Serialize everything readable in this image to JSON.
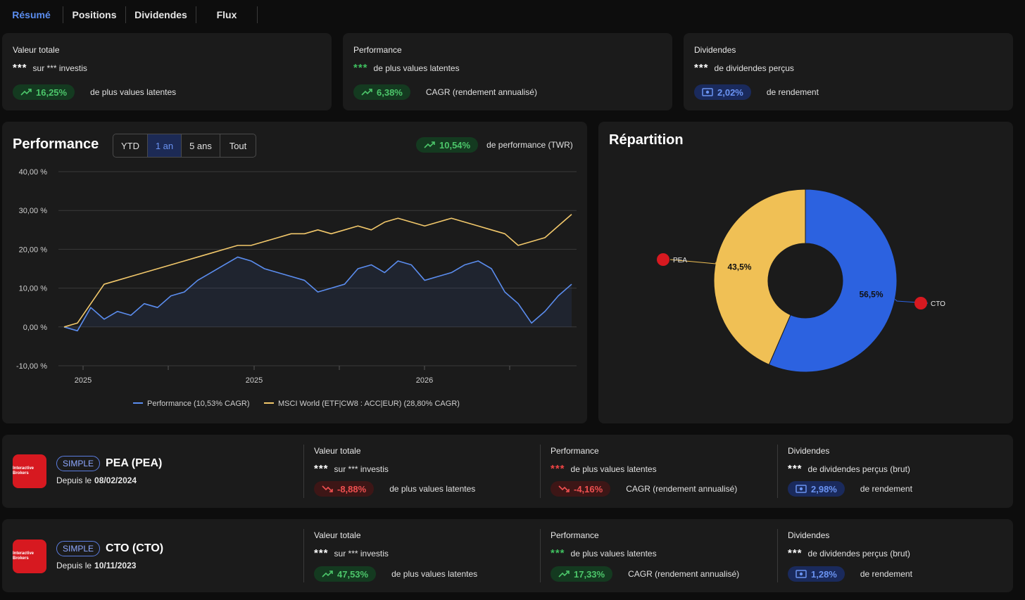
{
  "tabs": [
    "Résumé",
    "Positions",
    "Dividendes",
    "Flux"
  ],
  "summary": {
    "value": {
      "title": "Valeur totale",
      "stars": "***",
      "sub": "sur *** investis",
      "pill": "16,25%",
      "pill_text": "de plus values latentes"
    },
    "perf": {
      "title": "Performance",
      "stars": "***",
      "sub": "de plus values latentes",
      "pill": "6,38%",
      "pill_text": "CAGR (rendement annualisé)"
    },
    "div": {
      "title": "Dividendes",
      "stars": "***",
      "sub": "de dividendes perçus",
      "pill": "2,02%",
      "pill_text": "de rendement"
    }
  },
  "perf_panel": {
    "title": "Performance",
    "ranges": [
      "YTD",
      "1 an",
      "5 ans",
      "Tout"
    ],
    "active_range": "1 an",
    "twr_value": "10,54%",
    "twr_label": "de performance (TWR)"
  },
  "chart_data": {
    "type": "line",
    "ylim": [
      -10,
      40
    ],
    "yticks": [
      "40,00 %",
      "30,00 %",
      "20,00 %",
      "10,00 %",
      "0,00 %",
      "-10,00 %"
    ],
    "xticks": [
      "2025",
      "2025",
      "2026"
    ],
    "series": [
      {
        "name": "Performance (10,53% CAGR)",
        "color": "#5b8def",
        "values": [
          0,
          -1,
          5,
          2,
          4,
          3,
          6,
          5,
          8,
          9,
          12,
          14,
          16,
          18,
          17,
          15,
          14,
          13,
          12,
          9,
          10,
          11,
          15,
          16,
          14,
          17,
          16,
          12,
          13,
          14,
          16,
          17,
          15,
          9,
          6,
          1,
          4,
          8,
          11
        ]
      },
      {
        "name": "MSCI World (ETF|CW8 : ACC|EUR) (28,80% CAGR)",
        "color": "#f2c86b",
        "values": [
          0,
          1,
          6,
          11,
          12,
          13,
          14,
          15,
          16,
          17,
          18,
          19,
          20,
          21,
          21,
          22,
          23,
          24,
          24,
          25,
          24,
          25,
          26,
          25,
          27,
          28,
          27,
          26,
          27,
          28,
          27,
          26,
          25,
          24,
          21,
          22,
          23,
          26,
          29
        ]
      }
    ],
    "legend_position": "bottom"
  },
  "repartition": {
    "title": "Répartition",
    "chart_data": {
      "type": "pie",
      "labels": [
        "CTO",
        "PEA"
      ],
      "values": [
        56.5,
        43.5
      ],
      "value_labels": [
        "56,5%",
        "43,5%"
      ],
      "colors": [
        "#2c62e0",
        "#f0c055"
      ]
    }
  },
  "accounts": [
    {
      "badge": "SIMPLE",
      "name": "PEA (PEA)",
      "since_label": "Depuis le",
      "since_date": "08/02/2024",
      "logo_text": "Interactive Brokers",
      "value": {
        "title": "Valeur totale",
        "stars": "***",
        "sub": "sur *** investis",
        "pill": "-8,88%",
        "pill_text": "de plus values latentes"
      },
      "perf": {
        "title": "Performance",
        "stars": "***",
        "sub": "de plus values latentes",
        "pill": "-4,16%",
        "pill_text": "CAGR (rendement annualisé)"
      },
      "div": {
        "title": "Dividendes",
        "stars": "***",
        "sub": "de dividendes perçus (brut)",
        "pill": "2,98%",
        "pill_text": "de rendement"
      }
    },
    {
      "badge": "SIMPLE",
      "name": "CTO (CTO)",
      "since_label": "Depuis le",
      "since_date": "10/11/2023",
      "logo_text": "Interactive Brokers",
      "value": {
        "title": "Valeur totale",
        "stars": "***",
        "sub": "sur *** investis",
        "pill": "47,53%",
        "pill_text": "de plus values latentes"
      },
      "perf": {
        "title": "Performance",
        "stars": "***",
        "sub": "de plus values latentes",
        "pill": "17,33%",
        "pill_text": "CAGR (rendement annualisé)"
      },
      "div": {
        "title": "Dividendes",
        "stars": "***",
        "sub": "de dividendes perçus (brut)",
        "pill": "1,28%",
        "pill_text": "de rendement"
      }
    }
  ]
}
